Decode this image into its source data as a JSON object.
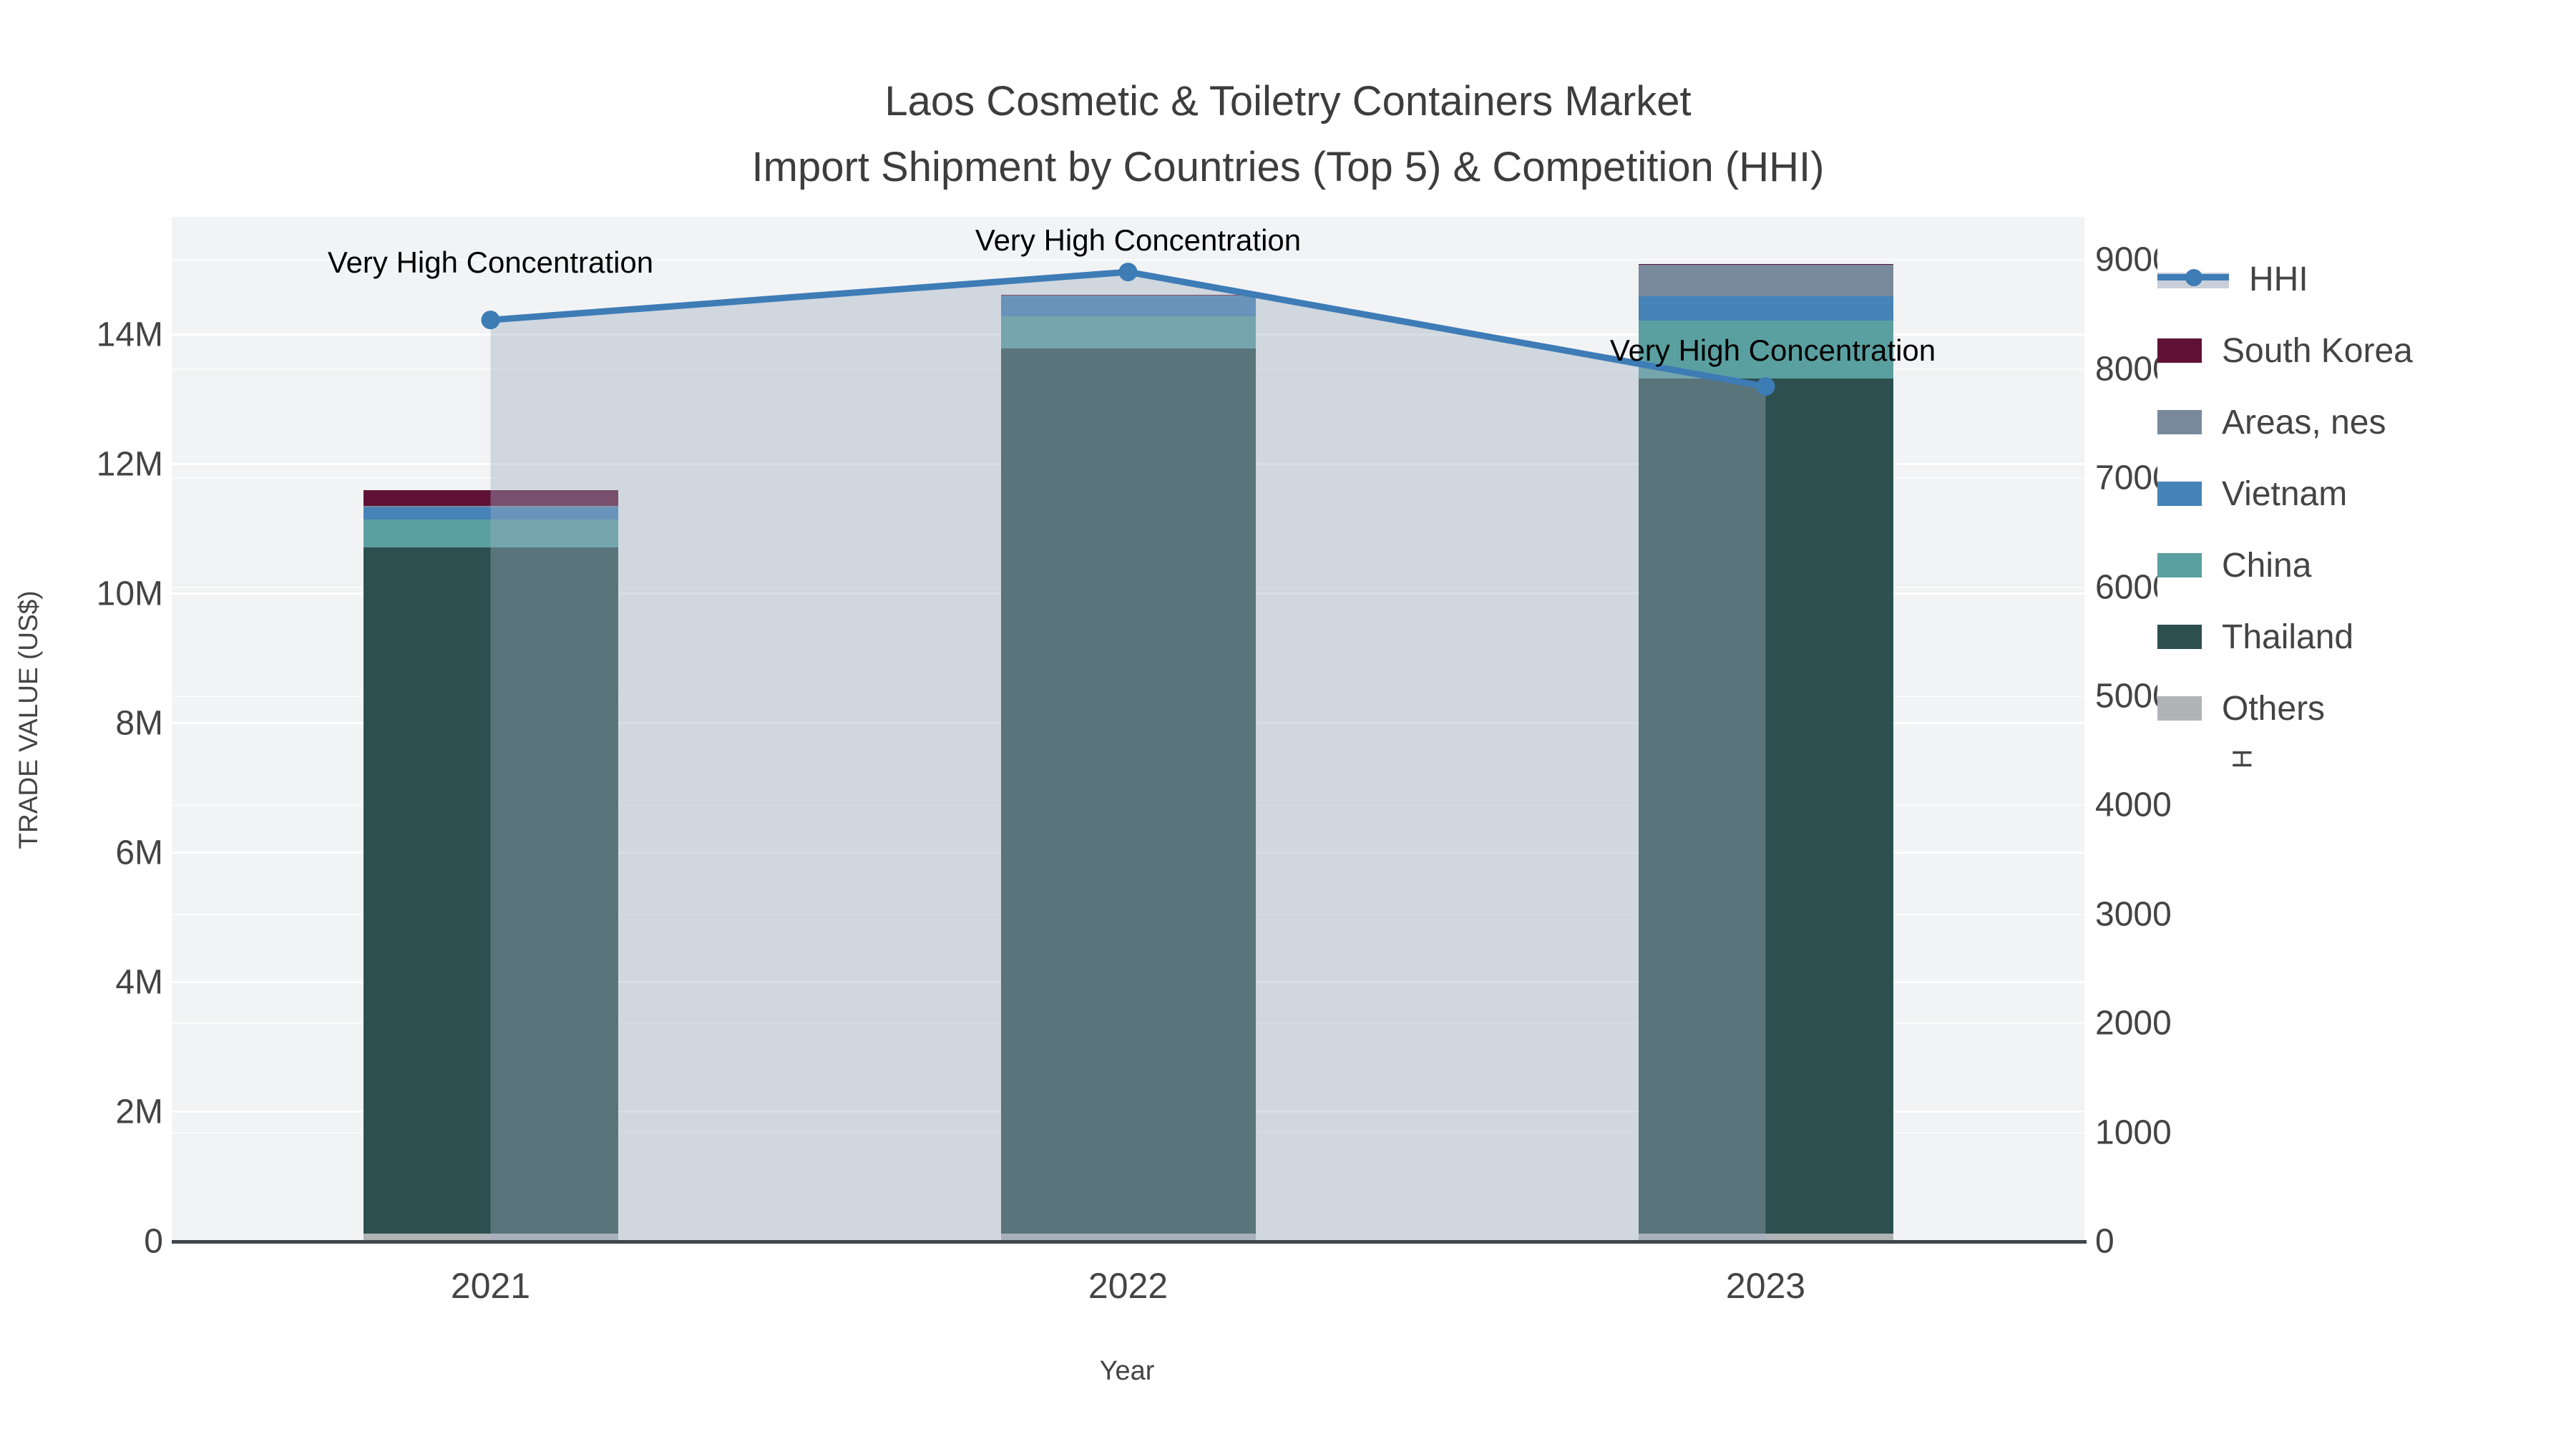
{
  "title": {
    "line1": "Laos Cosmetic & Toiletry Containers Market",
    "line2": "Import Shipment by Countries (Top 5) & Competition (HHI)"
  },
  "axes": {
    "x": {
      "title": "Year",
      "categories": [
        "2021",
        "2022",
        "2023"
      ]
    },
    "y_left": {
      "title": "TRADE VALUE (US$)",
      "tick_labels": [
        "0",
        "2M",
        "4M",
        "6M",
        "8M",
        "10M",
        "12M",
        "14M"
      ],
      "tick_step_usd": 2000000
    },
    "y_right": {
      "title": "HHI",
      "tick_labels": [
        "0",
        "1000",
        "2000",
        "3000",
        "4000",
        "5000",
        "6000",
        "7000",
        "8000",
        "9000"
      ],
      "tick_step": 1000
    }
  },
  "annotation": {
    "text": "Very High Concentration"
  },
  "legend": {
    "items": [
      {
        "label": "HHI",
        "symbol": "line",
        "color": "#3e7cb6"
      },
      {
        "label": "South Korea",
        "symbol": "square",
        "color": "#5f1236"
      },
      {
        "label": "Areas, nes",
        "symbol": "square",
        "color": "#78899c"
      },
      {
        "label": "Vietnam",
        "symbol": "square",
        "color": "#4583b8"
      },
      {
        "label": "China",
        "symbol": "square",
        "color": "#5ba0a1"
      },
      {
        "label": "Thailand",
        "symbol": "square",
        "color": "#2d4f4f"
      },
      {
        "label": "Others",
        "symbol": "square",
        "color": "#b0b4b7"
      }
    ]
  },
  "chart_data": {
    "type": "bar",
    "subtype": "stacked-bars-with-line-overlay",
    "categories": [
      "2021",
      "2022",
      "2023"
    ],
    "stack_order_bottom_to_top": [
      "Others",
      "Thailand",
      "China",
      "Vietnam",
      "Areas, nes",
      "South Korea"
    ],
    "series": [
      {
        "name": "Others",
        "type": "bar",
        "color": "#b0b4b7",
        "values_usd": [
          120000,
          120000,
          120000
        ]
      },
      {
        "name": "Thailand",
        "type": "bar",
        "color": "#2d4f4f",
        "values_usd": [
          10600000,
          13670000,
          13200000
        ]
      },
      {
        "name": "China",
        "type": "bar",
        "color": "#5ba0a1",
        "values_usd": [
          430000,
          490000,
          900000
        ]
      },
      {
        "name": "Vietnam",
        "type": "bar",
        "color": "#4583b8",
        "values_usd": [
          190000,
          320000,
          370000
        ]
      },
      {
        "name": "Areas, nes",
        "type": "bar",
        "color": "#78899c",
        "values_usd": [
          20000,
          10000,
          490000
        ]
      },
      {
        "name": "South Korea",
        "type": "bar",
        "color": "#5f1236",
        "values_usd": [
          240000,
          10000,
          10000
        ]
      }
    ],
    "line_series": {
      "name": "HHI",
      "type": "line",
      "color": "#3e7cb6",
      "fill_color": "rgba(158,172,192,0.40)",
      "values": [
        8450,
        8890,
        7840
      ],
      "point_annotations": [
        "Very High Concentration",
        "Very High Concentration",
        "Very High Concentration"
      ]
    },
    "title": "Laos Cosmetic & Toiletry Containers Market — Import Shipment by Countries (Top 5) & Competition (HHI)",
    "xlabel": "Year",
    "ylabel_left": "TRADE VALUE (US$)",
    "ylabel_right": "HHI",
    "ylim_left_usd": [
      0,
      15820000
    ],
    "ylim_right": [
      0,
      9396
    ],
    "grid": true,
    "legend_position": "right",
    "plot_background": "#f2f3f4"
  },
  "colors": {
    "page_background": "#ffffff",
    "plot_background": "#f2f3f4",
    "text": "#444444",
    "annotation_text": "#000000",
    "hhi_line": "#3e7cb6",
    "hhi_fill": "rgba(158,172,192,0.40)",
    "axis_line": "#42474b"
  }
}
